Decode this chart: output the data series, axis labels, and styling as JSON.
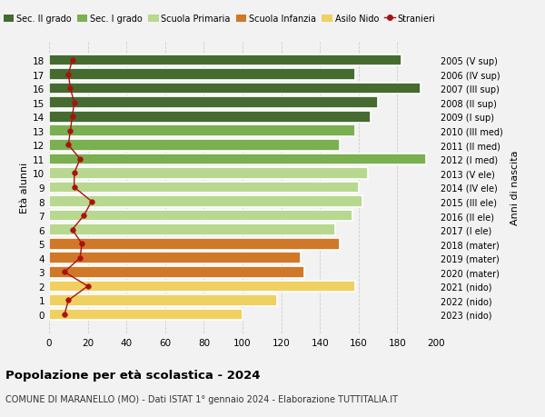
{
  "ages": [
    0,
    1,
    2,
    3,
    4,
    5,
    6,
    7,
    8,
    9,
    10,
    11,
    12,
    13,
    14,
    15,
    16,
    17,
    18
  ],
  "years": [
    "2023 (nido)",
    "2022 (nido)",
    "2021 (nido)",
    "2020 (mater)",
    "2019 (mater)",
    "2018 (mater)",
    "2017 (I ele)",
    "2016 (II ele)",
    "2015 (III ele)",
    "2014 (IV ele)",
    "2013 (V ele)",
    "2012 (I med)",
    "2011 (II med)",
    "2010 (III med)",
    "2009 (I sup)",
    "2008 (II sup)",
    "2007 (III sup)",
    "2006 (IV sup)",
    "2005 (V sup)"
  ],
  "bar_values": [
    100,
    118,
    158,
    132,
    130,
    150,
    148,
    157,
    162,
    160,
    165,
    195,
    150,
    158,
    166,
    170,
    192,
    158,
    182
  ],
  "stranieri": [
    8,
    10,
    20,
    8,
    16,
    17,
    12,
    18,
    22,
    13,
    13,
    16,
    10,
    11,
    12,
    13,
    11,
    10,
    12
  ],
  "color_per_age": {
    "18": "#456b30",
    "17": "#456b30",
    "16": "#456b30",
    "15": "#456b30",
    "14": "#456b30",
    "13": "#7ab050",
    "12": "#7ab050",
    "11": "#7ab050",
    "10": "#b8d890",
    "9": "#b8d890",
    "8": "#b8d890",
    "7": "#b8d890",
    "6": "#b8d890",
    "5": "#d07828",
    "4": "#d07828",
    "3": "#d07828",
    "2": "#f0d060",
    "1": "#f0d060",
    "0": "#f0d060"
  },
  "legend_labels": [
    "Sec. II grado",
    "Sec. I grado",
    "Scuola Primaria",
    "Scuola Infanzia",
    "Asilo Nido",
    "Stranieri"
  ],
  "legend_colors": [
    "#456b30",
    "#7ab050",
    "#b8d890",
    "#d07828",
    "#f0d060",
    "#aa1111"
  ],
  "stranieri_color": "#aa1111",
  "title": "Popolazione per età scolastica - 2024",
  "subtitle": "COMUNE DI MARANELLO (MO) - Dati ISTAT 1° gennaio 2024 - Elaborazione TUTTITALIA.IT",
  "ylabel_left": "Età alunni",
  "ylabel_right": "Anni di nascita",
  "xlim": [
    0,
    200
  ],
  "xticks": [
    0,
    20,
    40,
    60,
    80,
    100,
    120,
    140,
    160,
    180,
    200
  ],
  "bg_color": "#f2f2f2"
}
